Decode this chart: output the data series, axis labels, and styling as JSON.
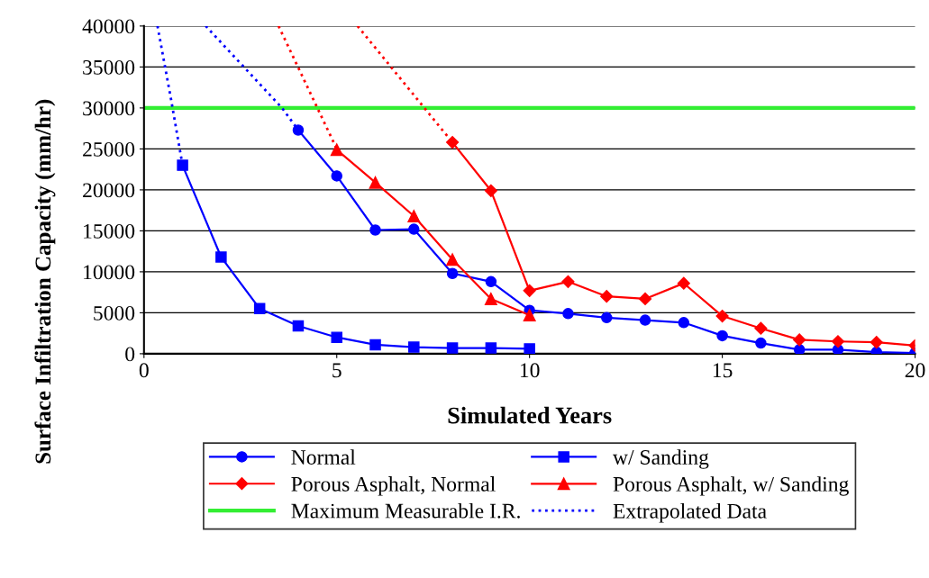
{
  "chart_data": {
    "type": "line",
    "xlabel": "Simulated Years",
    "ylabel": "Surface Infiltration Capacity (mm/hr)",
    "xlim": [
      0,
      20
    ],
    "xticks": [
      0,
      5,
      10,
      15,
      20
    ],
    "ylim": [
      0,
      40000
    ],
    "yticks": [
      0,
      5000,
      10000,
      15000,
      20000,
      25000,
      30000,
      35000,
      40000
    ],
    "grid": "y",
    "legend": "bottom",
    "line_style": "solid",
    "series": [
      {
        "name": "Normal",
        "color": "#0000ff",
        "marker": "circle",
        "x": [
          4,
          5,
          6,
          7,
          8,
          9,
          10,
          11,
          12,
          13,
          14,
          15,
          16,
          17,
          18,
          19,
          20
        ],
        "values": [
          27300,
          21700,
          15100,
          15200,
          9800,
          8800,
          5300,
          4900,
          4400,
          4100,
          3800,
          2200,
          1300,
          500,
          500,
          200,
          100
        ]
      },
      {
        "name": "w/ Sanding",
        "color": "#0000ff",
        "marker": "square",
        "x": [
          1,
          2,
          3,
          4,
          5,
          6,
          7,
          8,
          9,
          10
        ],
        "values": [
          23000,
          11800,
          5500,
          3400,
          2000,
          1100,
          800,
          700,
          700,
          600
        ]
      },
      {
        "name": "Porous Asphalt, Normal",
        "color": "#ff0000",
        "marker": "diamond",
        "x": [
          8,
          9,
          10,
          11,
          12,
          13,
          14,
          15,
          16,
          17,
          18,
          19,
          20
        ],
        "values": [
          25800,
          19900,
          7700,
          8800,
          7000,
          6700,
          8600,
          4600,
          3100,
          1700,
          1500,
          1400,
          1000
        ]
      },
      {
        "name": "Porous Asphalt, w/ Sanding",
        "color": "#ff0000",
        "marker": "triangle",
        "x": [
          5,
          6,
          7,
          8,
          9,
          10
        ],
        "values": [
          24900,
          20900,
          16800,
          11500,
          6700,
          4700
        ]
      },
      {
        "name": "Extrapolated Data",
        "color": "#0000ff",
        "line_style": "dotted",
        "marker": "none",
        "x": [
          0.35,
          0.7,
          1
        ],
        "values": [
          40000,
          31100,
          23000
        ]
      },
      {
        "color": "#0000ff",
        "line_style": "dotted",
        "marker": "none",
        "x": [
          1.6,
          3.58,
          4
        ],
        "values": [
          40000,
          30000,
          27300
        ]
      },
      {
        "color": "#ff0000",
        "line_style": "dotted",
        "marker": "none",
        "x": [
          3.49,
          5
        ],
        "values": [
          40000,
          25000
        ]
      },
      {
        "color": "#ff0000",
        "line_style": "dotted",
        "marker": "none",
        "x": [
          5.54,
          8
        ],
        "values": [
          40000,
          25800
        ]
      }
    ],
    "ref_lines": [
      {
        "axis": "y",
        "value": 30000,
        "label": "Maximum Measurable I.R.",
        "color": "#33ee33",
        "line_style": "solid"
      }
    ]
  }
}
